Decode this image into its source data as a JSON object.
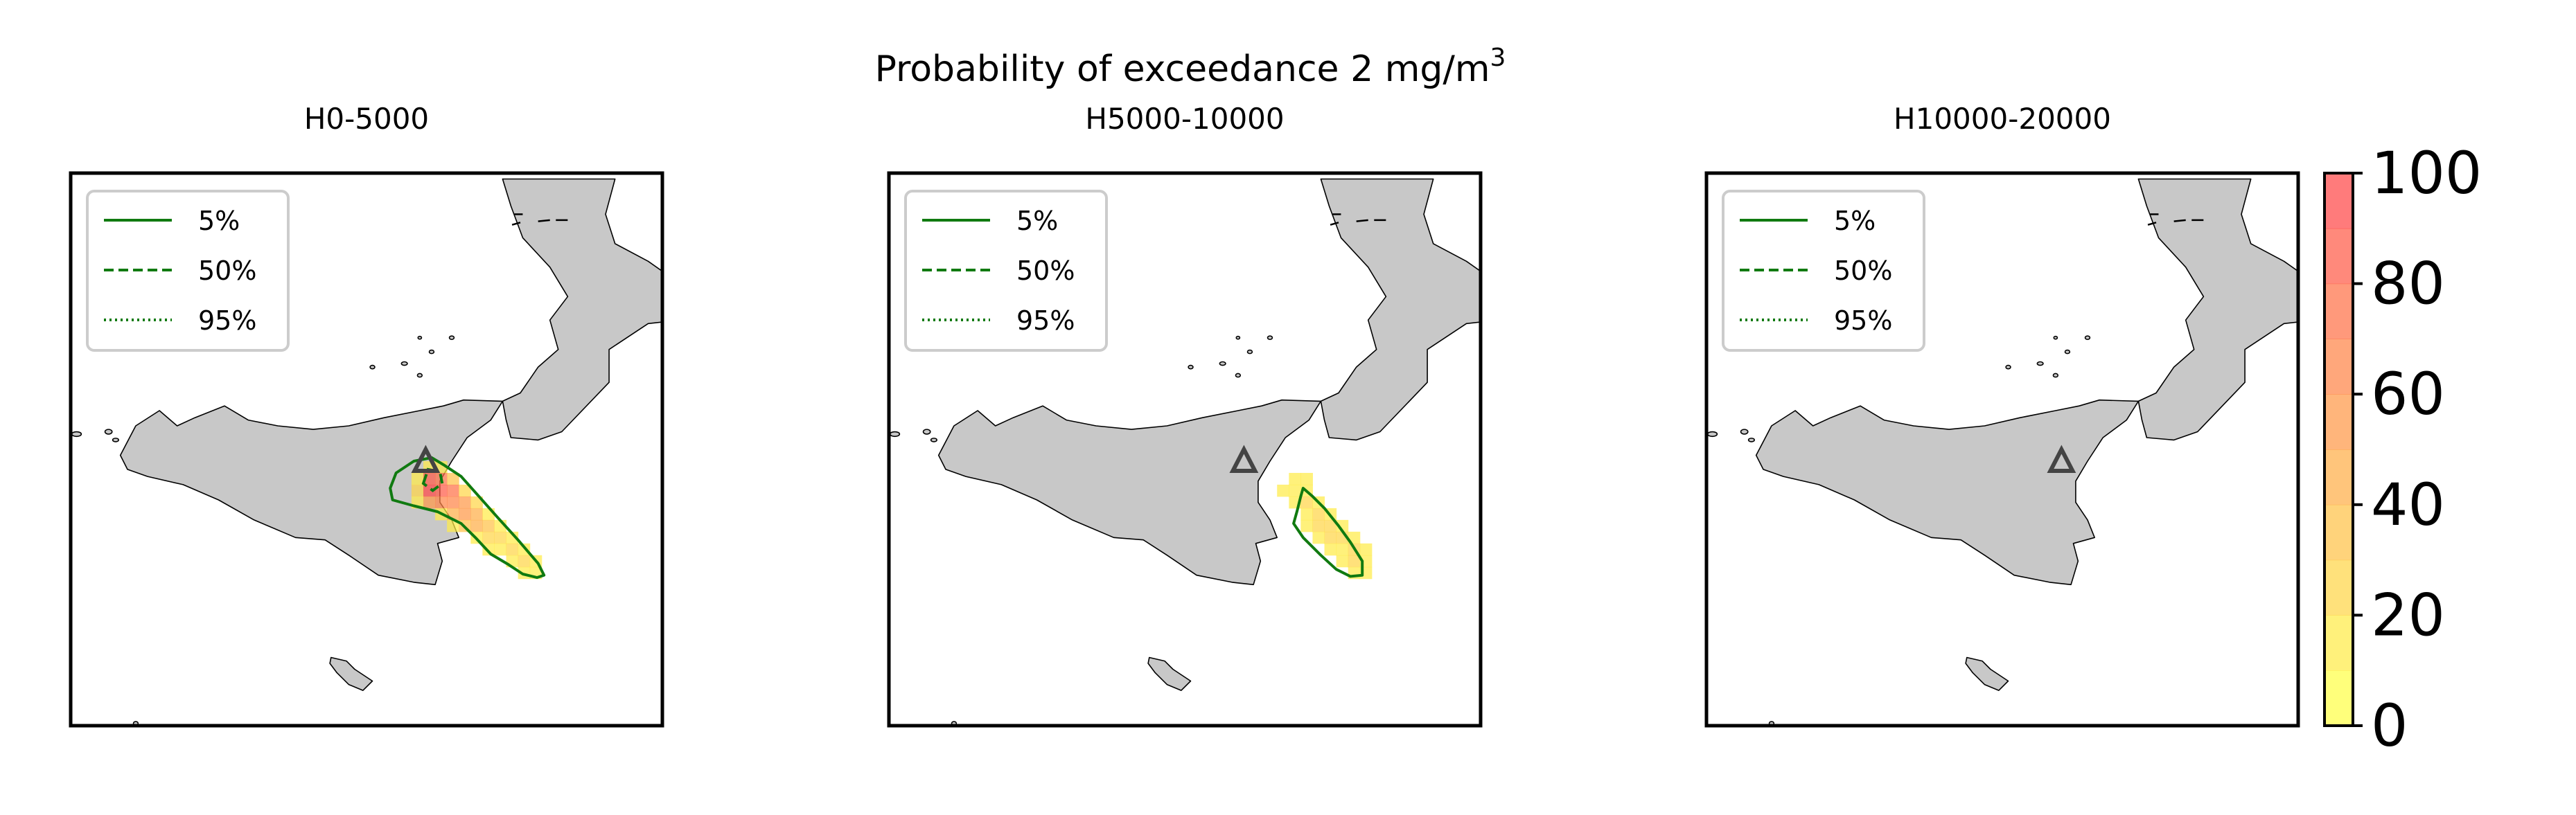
{
  "figure": {
    "suptitle_main": "Probability of exceedance 2 mg/m",
    "suptitle_sup": "3"
  },
  "colors": {
    "land": "#c8c8c8",
    "coast": "#000000",
    "contour": "#107a10",
    "volcano": "#444444",
    "cmap_low": "#ffff48",
    "cmap_high": "#ff4848"
  },
  "legend": {
    "entries": [
      {
        "label": "5%",
        "style": "solid"
      },
      {
        "label": "50%",
        "style": "dashed"
      },
      {
        "label": "95%",
        "style": "dotted"
      }
    ]
  },
  "colorbar": {
    "ticks": [
      "0",
      "20",
      "40",
      "60",
      "80",
      "100"
    ],
    "range": [
      0,
      100
    ],
    "levels": 10
  },
  "chart_data": [
    {
      "type": "heatmap",
      "title": "H0-5000",
      "cells": [
        [
          15.03,
          37.7,
          10
        ],
        [
          15.13,
          37.7,
          10
        ],
        [
          14.93,
          37.6,
          15
        ],
        [
          15.03,
          37.6,
          85
        ],
        [
          15.13,
          37.6,
          75
        ],
        [
          15.23,
          37.6,
          30
        ],
        [
          14.93,
          37.5,
          25
        ],
        [
          15.03,
          37.5,
          90
        ],
        [
          15.13,
          37.5,
          80
        ],
        [
          15.23,
          37.5,
          70
        ],
        [
          15.33,
          37.5,
          20
        ],
        [
          14.93,
          37.4,
          10
        ],
        [
          15.03,
          37.4,
          50
        ],
        [
          15.13,
          37.4,
          60
        ],
        [
          15.23,
          37.4,
          60
        ],
        [
          15.33,
          37.4,
          55
        ],
        [
          15.43,
          37.4,
          25
        ],
        [
          15.13,
          37.3,
          15
        ],
        [
          15.23,
          37.3,
          45
        ],
        [
          15.33,
          37.3,
          50
        ],
        [
          15.43,
          37.3,
          40
        ],
        [
          15.53,
          37.3,
          15
        ],
        [
          15.23,
          37.2,
          10
        ],
        [
          15.33,
          37.2,
          30
        ],
        [
          15.43,
          37.2,
          40
        ],
        [
          15.53,
          37.2,
          30
        ],
        [
          15.63,
          37.2,
          12
        ],
        [
          15.43,
          37.1,
          15
        ],
        [
          15.53,
          37.1,
          25
        ],
        [
          15.63,
          37.1,
          20
        ],
        [
          15.73,
          37.1,
          10
        ],
        [
          15.53,
          37.0,
          10
        ],
        [
          15.63,
          37.0,
          15
        ],
        [
          15.73,
          37.0,
          25
        ],
        [
          15.83,
          37.0,
          15
        ],
        [
          15.73,
          36.9,
          10
        ],
        [
          15.83,
          36.9,
          20
        ],
        [
          15.93,
          36.9,
          15
        ],
        [
          15.83,
          36.8,
          10
        ],
        [
          15.93,
          36.8,
          12
        ]
      ],
      "contour_5pct": [
        [
          14.7,
          37.52
        ],
        [
          14.75,
          37.65
        ],
        [
          14.9,
          37.75
        ],
        [
          15.05,
          37.78
        ],
        [
          15.15,
          37.72
        ],
        [
          15.3,
          37.62
        ],
        [
          15.45,
          37.45
        ],
        [
          15.6,
          37.28
        ],
        [
          15.78,
          37.08
        ],
        [
          15.95,
          36.88
        ],
        [
          16.0,
          36.78
        ],
        [
          15.94,
          36.76
        ],
        [
          15.82,
          36.79
        ],
        [
          15.7,
          36.87
        ],
        [
          15.55,
          36.96
        ],
        [
          15.42,
          37.1
        ],
        [
          15.3,
          37.22
        ],
        [
          15.1,
          37.32
        ],
        [
          14.9,
          37.37
        ],
        [
          14.72,
          37.42
        ]
      ],
      "contour_50pct": [
        [
          14.98,
          37.56
        ],
        [
          15.02,
          37.68
        ],
        [
          15.12,
          37.66
        ],
        [
          15.14,
          37.56
        ],
        [
          15.06,
          37.5
        ]
      ],
      "contour_95pct": []
    },
    {
      "type": "heatmap",
      "title": "H5000-10000",
      "cells": [
        [
          15.33,
          37.5,
          10
        ],
        [
          15.43,
          37.6,
          12
        ],
        [
          15.43,
          37.5,
          15
        ],
        [
          15.53,
          37.6,
          15
        ],
        [
          15.53,
          37.5,
          18
        ],
        [
          15.43,
          37.4,
          10
        ],
        [
          15.53,
          37.4,
          20
        ],
        [
          15.63,
          37.4,
          15
        ],
        [
          15.53,
          37.3,
          18
        ],
        [
          15.63,
          37.3,
          25
        ],
        [
          15.73,
          37.3,
          12
        ],
        [
          15.53,
          37.2,
          10
        ],
        [
          15.63,
          37.2,
          22
        ],
        [
          15.73,
          37.2,
          25
        ],
        [
          15.83,
          37.2,
          15
        ],
        [
          15.63,
          37.1,
          12
        ],
        [
          15.73,
          37.1,
          20
        ],
        [
          15.83,
          37.1,
          22
        ],
        [
          15.93,
          37.1,
          12
        ],
        [
          15.73,
          37.0,
          10
        ],
        [
          15.83,
          37.0,
          18
        ],
        [
          15.93,
          37.0,
          22
        ],
        [
          16.03,
          37.0,
          10
        ],
        [
          15.83,
          36.9,
          12
        ],
        [
          15.93,
          36.9,
          20
        ],
        [
          16.03,
          36.9,
          15
        ],
        [
          15.93,
          36.8,
          12
        ],
        [
          16.03,
          36.8,
          10
        ]
      ],
      "contour_5pct": [
        [
          15.5,
          37.52
        ],
        [
          15.58,
          37.45
        ],
        [
          15.68,
          37.35
        ],
        [
          15.8,
          37.2
        ],
        [
          15.9,
          37.06
        ],
        [
          16.0,
          36.9
        ],
        [
          16.0,
          36.78
        ],
        [
          15.9,
          36.77
        ],
        [
          15.78,
          36.83
        ],
        [
          15.65,
          36.95
        ],
        [
          15.5,
          37.1
        ],
        [
          15.42,
          37.22
        ],
        [
          15.45,
          37.33
        ],
        [
          15.48,
          37.45
        ]
      ],
      "contour_50pct": [],
      "contour_95pct": []
    },
    {
      "type": "heatmap",
      "title": "H10000-20000",
      "cells": [],
      "contour_5pct": [],
      "contour_50pct": [],
      "contour_95pct": []
    }
  ]
}
